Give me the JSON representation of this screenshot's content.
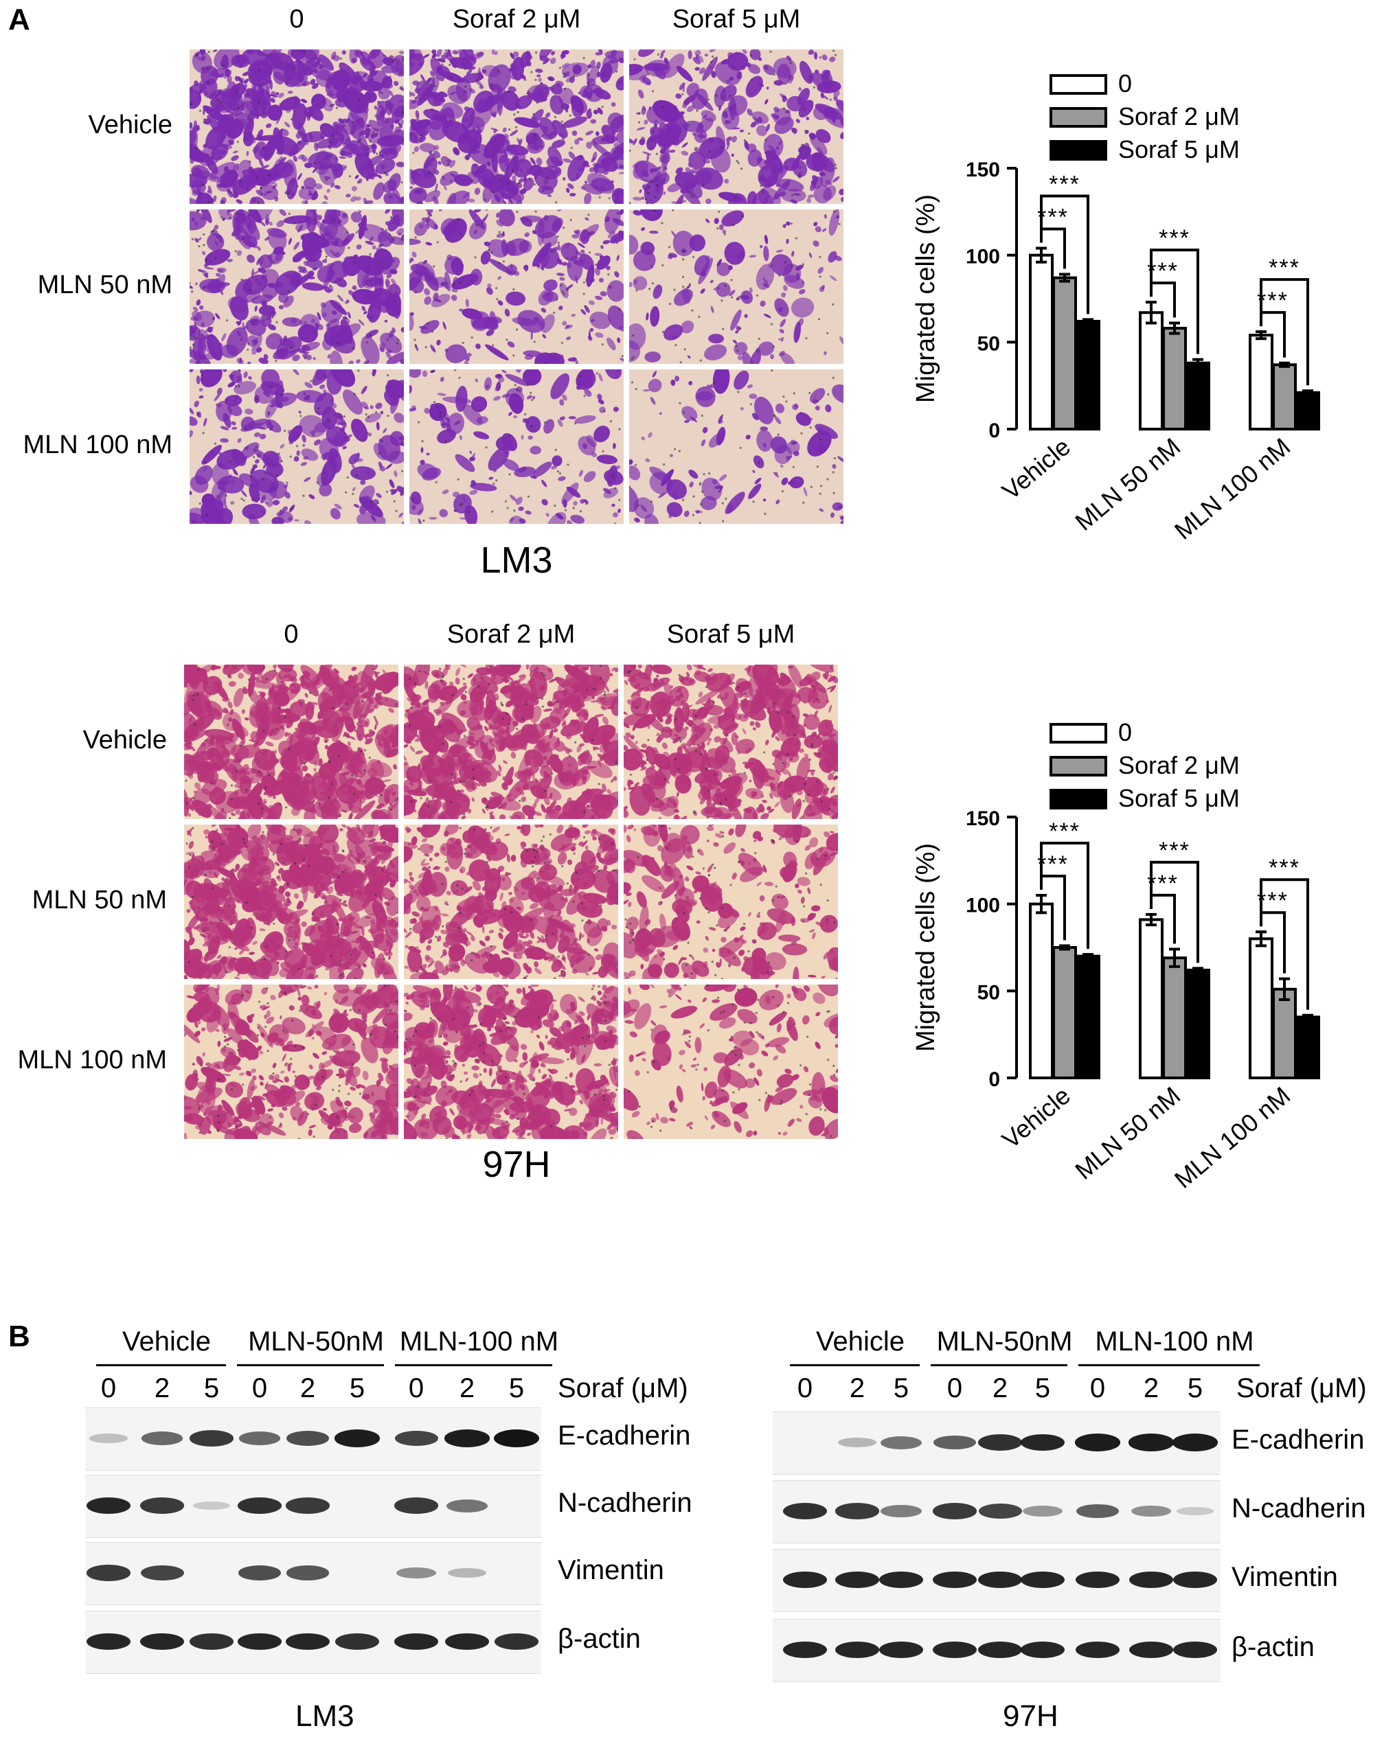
{
  "panel_a": {
    "letter": "A",
    "micro_cols": [
      "0",
      "Soraf 2 μM",
      "Soraf 5 μM"
    ],
    "micro_rows": [
      "Vehicle",
      "MLN 50 nM",
      "MLN 100 nM"
    ],
    "lm3_caption": "LM3",
    "h97_caption": "97H",
    "lm3_colors": {
      "bg": "#e9d3c4",
      "stain": "#7a2ab0"
    },
    "h97_colors": {
      "bg": "#f0d8bf",
      "stain": "#b8347a"
    }
  },
  "panel_b": {
    "letter": "B",
    "groups": [
      "Vehicle",
      "MLN-50nM",
      "MLN-100 nM"
    ],
    "lanes": [
      "0",
      "2",
      "5",
      "0",
      "2",
      "5",
      "0",
      "2",
      "5"
    ],
    "soraf_label": "Soraf (μM)",
    "proteins": [
      "E-cadherin",
      "N-cadherin",
      "Vimentin",
      "β-actin"
    ],
    "lm3_caption": "LM3",
    "h97_caption": "97H",
    "lm3_intensity": [
      [
        0.1,
        0.55,
        0.8,
        0.55,
        0.7,
        0.95,
        0.75,
        0.95,
        1.0
      ],
      [
        0.9,
        0.8,
        0.05,
        0.85,
        0.8,
        0.0,
        0.8,
        0.5,
        0.0
      ],
      [
        0.8,
        0.75,
        0.0,
        0.7,
        0.65,
        0.0,
        0.35,
        0.15,
        0.0
      ],
      [
        0.9,
        0.9,
        0.85,
        0.9,
        0.9,
        0.85,
        0.9,
        0.9,
        0.85
      ]
    ],
    "h97_intensity": [
      [
        0.0,
        0.15,
        0.5,
        0.6,
        0.85,
        0.9,
        0.95,
        0.95,
        0.95
      ],
      [
        0.85,
        0.8,
        0.45,
        0.8,
        0.75,
        0.3,
        0.6,
        0.35,
        0.05
      ],
      [
        0.9,
        0.9,
        0.9,
        0.9,
        0.9,
        0.9,
        0.9,
        0.9,
        0.9
      ],
      [
        0.9,
        0.9,
        0.9,
        0.9,
        0.9,
        0.9,
        0.9,
        0.9,
        0.9
      ]
    ]
  },
  "chart_data": [
    {
      "type": "bar",
      "title": "",
      "xlabel": "",
      "ylabel": "Migrated cells (%)",
      "ylim": [
        0,
        150
      ],
      "yticks": [
        "0",
        "50",
        "100",
        "150"
      ],
      "categories": [
        "Vehicle",
        "MLN 50 nM",
        "MLN 100 nM"
      ],
      "series": [
        {
          "name": "0",
          "color": "#ffffff",
          "values": [
            100,
            67,
            54
          ],
          "errors": [
            4,
            6,
            2
          ]
        },
        {
          "name": "Soraf 2 μM",
          "color": "#999999",
          "values": [
            87,
            58,
            37
          ],
          "errors": [
            2,
            3,
            1
          ]
        },
        {
          "name": "Soraf 5 μM",
          "color": "#000000",
          "values": [
            62,
            38,
            21
          ],
          "errors": [
            1,
            2,
            1
          ]
        }
      ],
      "significance": [
        {
          "group": 0,
          "pairs": [
            [
              "0",
              "Soraf 2 μM",
              "***"
            ],
            [
              "0",
              "Soraf 5 μM",
              "***"
            ]
          ]
        },
        {
          "group": 1,
          "pairs": [
            [
              "0",
              "Soraf 2 μM",
              "***"
            ],
            [
              "0",
              "Soraf 5 μM",
              "***"
            ]
          ]
        },
        {
          "group": 2,
          "pairs": [
            [
              "0",
              "Soraf 2 μM",
              "***"
            ],
            [
              "0",
              "Soraf 5 μM",
              "***"
            ]
          ]
        }
      ],
      "legend": "top"
    },
    {
      "type": "bar",
      "title": "",
      "xlabel": "",
      "ylabel": "Migrated cells (%)",
      "ylim": [
        0,
        150
      ],
      "yticks": [
        "0",
        "50",
        "100",
        "150"
      ],
      "categories": [
        "Vehicle",
        "MLN 50 nM",
        "MLN 100 nM"
      ],
      "series": [
        {
          "name": "0",
          "color": "#ffffff",
          "values": [
            100,
            91,
            80
          ],
          "errors": [
            5,
            3,
            4
          ]
        },
        {
          "name": "Soraf 2 μM",
          "color": "#999999",
          "values": [
            75,
            69,
            51
          ],
          "errors": [
            1,
            5,
            6
          ]
        },
        {
          "name": "Soraf 5 μM",
          "color": "#000000",
          "values": [
            70,
            62,
            35
          ],
          "errors": [
            1,
            1,
            1
          ]
        }
      ],
      "significance": [
        {
          "group": 0,
          "pairs": [
            [
              "0",
              "Soraf 2 μM",
              "***"
            ],
            [
              "0",
              "Soraf 5 μM",
              "***"
            ]
          ]
        },
        {
          "group": 1,
          "pairs": [
            [
              "0",
              "Soraf 2 μM",
              "***"
            ],
            [
              "0",
              "Soraf 5 μM",
              "***"
            ]
          ]
        },
        {
          "group": 2,
          "pairs": [
            [
              "0",
              "Soraf 2 μM",
              "***"
            ],
            [
              "0",
              "Soraf 5 μM",
              "***"
            ]
          ]
        }
      ],
      "legend": "top"
    }
  ]
}
